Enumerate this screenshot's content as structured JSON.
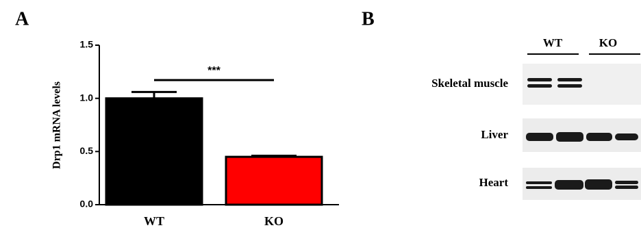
{
  "panel_labels": [
    "A",
    "B"
  ],
  "chart_data": {
    "type": "bar",
    "y_label": "Drp1 mRNA levels",
    "categories": [
      "WT",
      "KO"
    ],
    "values": [
      1.0,
      0.45
    ],
    "errors": [
      0.06,
      0.01
    ],
    "colors": [
      "#000000",
      "#ff0000"
    ],
    "ylim": [
      0,
      1.5
    ],
    "yticks": [
      {
        "value": 0,
        "label": "0.0"
      },
      0.5,
      {
        "value": 1,
        "label": "1.0"
      },
      1.5
    ],
    "annotation": "***"
  },
  "blot": {
    "groups": [
      "WT",
      "KO"
    ],
    "rows": [
      "Skeletal muscle",
      "Liver",
      "Heart"
    ]
  }
}
